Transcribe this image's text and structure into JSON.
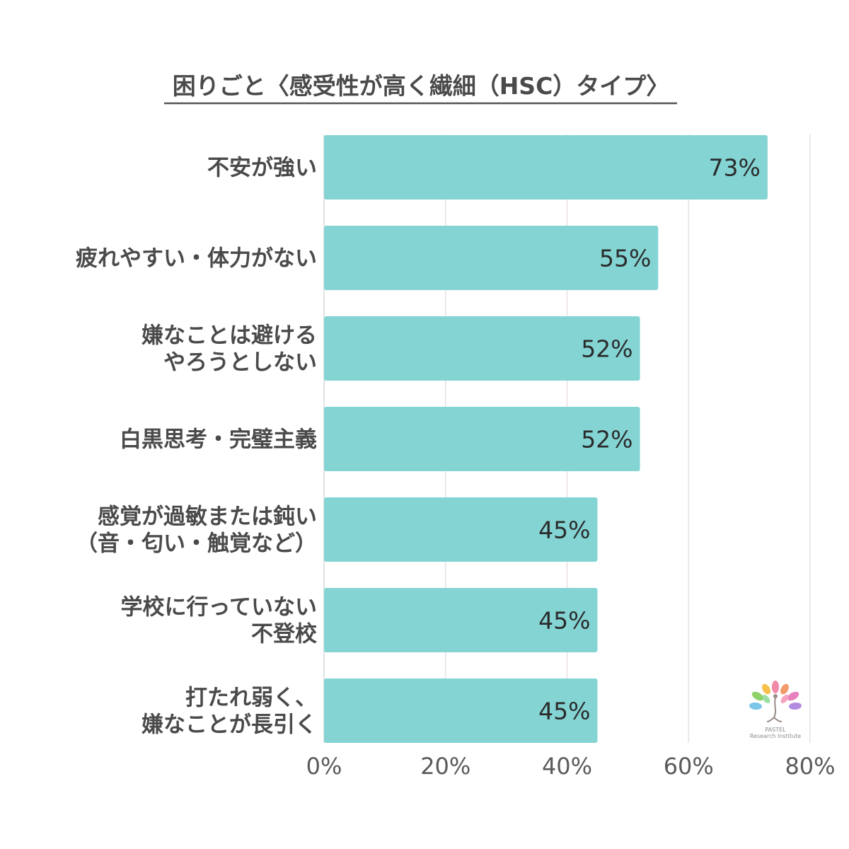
{
  "chart_data": {
    "type": "bar",
    "orientation": "horizontal",
    "title": "困りごと〈感受性が高く繊細（HSC）タイプ〉",
    "categories": [
      [
        "不安が強い"
      ],
      [
        "疲れやすい・体力がない"
      ],
      [
        "嫌なことは避ける",
        "やろうとしない"
      ],
      [
        "白黒思考・完璧主義"
      ],
      [
        "感覚が過敏または鈍い",
        "（音・匂い・触覚など）"
      ],
      [
        "学校に行っていない",
        "不登校"
      ],
      [
        "打たれ弱く、",
        "嫌なことが長引く"
      ]
    ],
    "values": [
      73,
      55,
      52,
      52,
      45,
      45,
      45
    ],
    "value_labels": [
      "73%",
      "55%",
      "52%",
      "52%",
      "45%",
      "45%",
      "45%"
    ],
    "xlim": [
      0,
      80
    ],
    "x_ticks": [
      0,
      20,
      40,
      60,
      80
    ],
    "x_tick_labels": [
      "0%",
      "20%",
      "40%",
      "60%",
      "80%"
    ],
    "grid": "vertical",
    "bar_color": "#84d4d4",
    "grid_color": "#e9dfe8"
  },
  "logo": {
    "line1": "PASTEL",
    "line2": "Research Institute"
  }
}
